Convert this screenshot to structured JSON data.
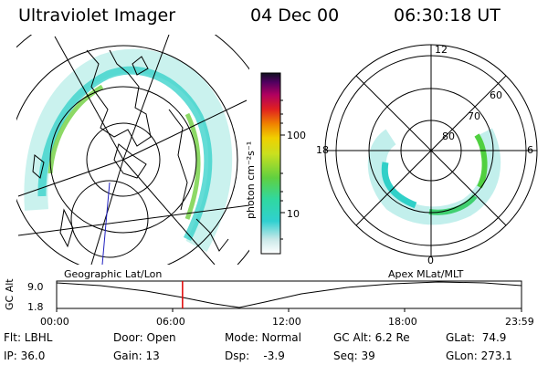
{
  "header": {
    "title": "Ultraviolet Imager",
    "date": "04 Dec 00",
    "time": "06:30:18 UT"
  },
  "colorbar": {
    "unit_label": "photon cm⁻²s⁻¹",
    "ticks": [
      "100",
      "10"
    ],
    "scale": "log"
  },
  "polar_plot": {
    "mlt_labels": [
      "12",
      "18",
      "6",
      "0"
    ],
    "lat_labels": [
      "60",
      "70",
      "80"
    ]
  },
  "left_projection_label": "Geographic Lat/Lon",
  "right_projection_label": "Apex  MLat/MLT",
  "timeline": {
    "ylabel": "GC Alt",
    "ytick_top": "9.0",
    "ytick_bottom": "1.8",
    "xticks": [
      "00:00",
      "06:00",
      "12:00",
      "18:00",
      "23:59"
    ],
    "current_time_hours": 6.5
  },
  "info": {
    "flt": "Flt: LBHL",
    "ip": "IP: 36.0",
    "door": "Door: Open",
    "gain": "Gain: 13",
    "mode": "Mode: Normal",
    "dsp": "Dsp:    -3.9",
    "gcalt": "GC Alt: 6.2 Re",
    "seq": "Seq: 39",
    "glat": "GLat:  74.9",
    "glon": "GLon: 273.1"
  },
  "colors": {
    "aurora_low": "#22d0d0",
    "aurora_mid": "#60d040",
    "current_time_marker": "#e00000"
  }
}
